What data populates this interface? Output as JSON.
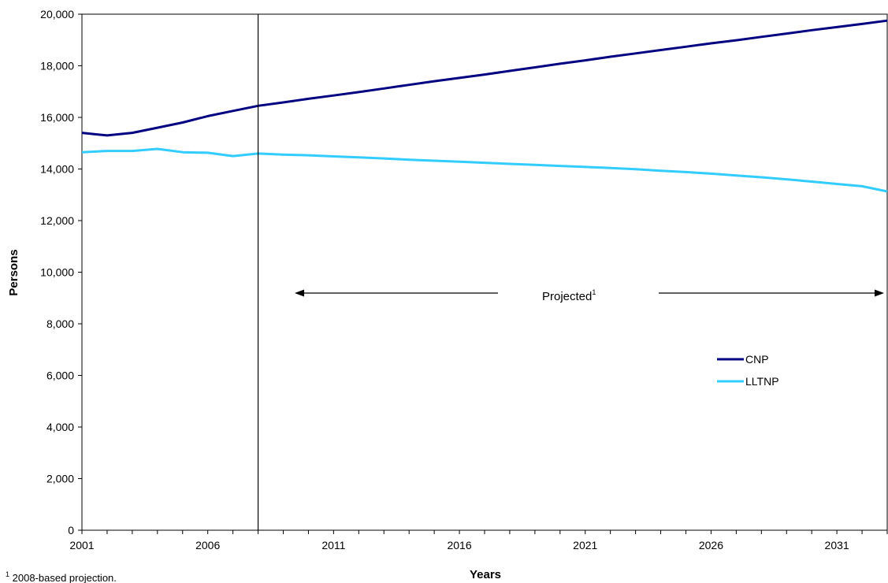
{
  "chart_data": {
    "type": "line",
    "title": "",
    "xlabel": "Years",
    "ylabel": "Persons",
    "xlim": [
      2001,
      2033
    ],
    "ylim": [
      0,
      20000
    ],
    "x_ticks": [
      2001,
      2006,
      2011,
      2016,
      2021,
      2026,
      2031
    ],
    "x_tick_labels": [
      "2001",
      "2006",
      "2011",
      "2016",
      "2021",
      "2026",
      "2031"
    ],
    "y_ticks": [
      0,
      2000,
      4000,
      6000,
      8000,
      10000,
      12000,
      14000,
      16000,
      18000,
      20000
    ],
    "y_tick_labels": [
      "0",
      "2,000",
      "4,000",
      "6,000",
      "8,000",
      "10,000",
      "12,000",
      "14,000",
      "16,000",
      "18,000",
      "20,000"
    ],
    "grid": false,
    "legend_position": "right",
    "x": [
      2001,
      2002,
      2003,
      2004,
      2005,
      2006,
      2007,
      2008,
      2009,
      2010,
      2011,
      2012,
      2013,
      2014,
      2015,
      2016,
      2017,
      2018,
      2019,
      2020,
      2021,
      2022,
      2023,
      2024,
      2025,
      2026,
      2027,
      2028,
      2029,
      2030,
      2031,
      2032,
      2033
    ],
    "series": [
      {
        "name": "CNP",
        "color": "#000080",
        "values": [
          15400,
          15300,
          15400,
          15600,
          15800,
          16050,
          16250,
          16450,
          16580,
          16720,
          16850,
          16980,
          17120,
          17260,
          17400,
          17530,
          17660,
          17800,
          17940,
          18080,
          18210,
          18350,
          18480,
          18610,
          18740,
          18870,
          18990,
          19120,
          19250,
          19380,
          19500,
          19620,
          19750
        ]
      },
      {
        "name": "LLTNP",
        "color": "#33CCFF",
        "values": [
          14650,
          14700,
          14700,
          14780,
          14650,
          14630,
          14500,
          14600,
          14560,
          14530,
          14490,
          14450,
          14410,
          14360,
          14320,
          14280,
          14240,
          14200,
          14160,
          14120,
          14080,
          14040,
          13990,
          13930,
          13880,
          13820,
          13750,
          13680,
          13600,
          13510,
          13420,
          13330,
          13130
        ]
      }
    ],
    "vertical_marker_x": 2008,
    "annotation": {
      "label": "Projected",
      "superscript": "1"
    },
    "footnote": {
      "marker": "1",
      "text": " 2008-based projection."
    }
  }
}
